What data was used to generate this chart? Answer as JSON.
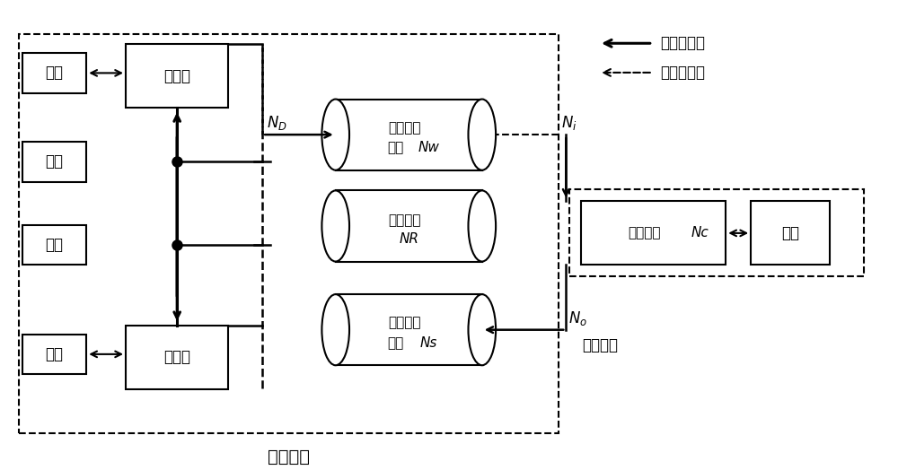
{
  "title": "电池运营",
  "background": "#ffffff",
  "legend_solid": "正向供应链",
  "legend_dashed": "反向供应链",
  "users": [
    "用户",
    "用户",
    "用户",
    "用户"
  ],
  "swap_stations": [
    "换电点",
    "换电点"
  ],
  "battery_waiting_line1": "等待充电",
  "battery_waiting_line2": "电池",
  "battery_waiting_italic": "Nw",
  "battery_standby_line1": "备用电池",
  "battery_standby_line2": "NR",
  "battery_done_line1": "完成充电",
  "battery_done_line2": "电池",
  "battery_done_italic": "Ns",
  "charge_module_text": "充电模块",
  "charge_module_italic": "Nc",
  "grid": "电网",
  "label_optimize": "优化充电"
}
